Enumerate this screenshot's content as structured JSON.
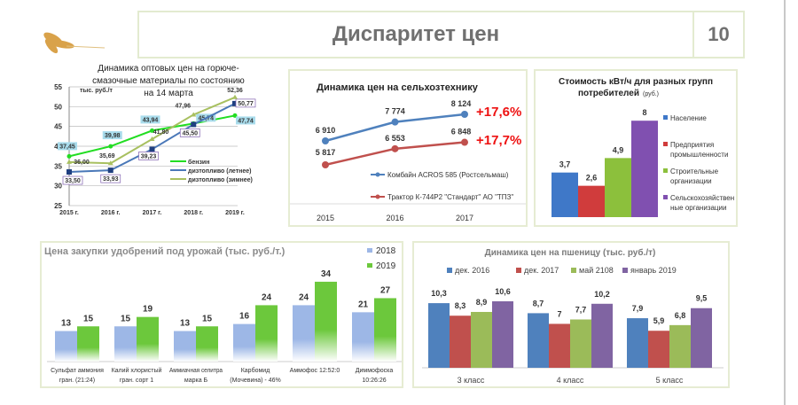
{
  "header": {
    "title": "Диспаритет цен",
    "page_number": "10",
    "logo": "wheat-ears"
  },
  "chart_data": [
    {
      "type": "line",
      "title": "Динамика оптовых цен на горюче-смазочные материалы по состоянию на 14 марта",
      "unit": "тыс. руб./т",
      "categories": [
        "2015 г.",
        "2016 г.",
        "2017 г.",
        "2018 г.",
        "2019 г."
      ],
      "yticks": [
        "25",
        "30",
        "35",
        "40",
        "45",
        "50",
        "55"
      ],
      "ylim": [
        25,
        55
      ],
      "series": [
        {
          "name": "бензин",
          "color": "#22dd22",
          "values": [
            37.45,
            39.98,
            43.94,
            45.74,
            47.74
          ],
          "labels": [
            "37,45",
            "39,98",
            "43,94",
            "45,74",
            "47,74"
          ]
        },
        {
          "name": "дизтопливо (летнее)",
          "color": "#4a78b8",
          "values": [
            33.5,
            33.93,
            39.23,
            45.5,
            50.77
          ],
          "labels": [
            "33,50",
            "33,93",
            "39,23",
            "45,50",
            "50,77"
          ]
        },
        {
          "name": "дизтопливо (зимнее)",
          "color": "#a8c060",
          "values": [
            36.0,
            35.69,
            41.8,
            47.96,
            52.36
          ],
          "labels": [
            "36,00",
            "35,69",
            "41,80",
            "47,96",
            "52,36"
          ]
        }
      ]
    },
    {
      "type": "line",
      "title": "Динамика цен на сельхозтехнику",
      "categories": [
        "2015",
        "2016",
        "2017"
      ],
      "series": [
        {
          "name": "Комбайн ACROS 585 (Ростсельмаш)",
          "color": "#4f81bd",
          "values": [
            6910,
            7774,
            8124
          ],
          "labels": [
            "6 910",
            "7 774",
            "8 124"
          ],
          "change": "+17,6%"
        },
        {
          "name": "Трактор К-744Р2 \"Стандарт\" АО \"ТПЗ\"",
          "color": "#c0504d",
          "values": [
            5817,
            6553,
            6848
          ],
          "labels": [
            "5 817",
            "6 553",
            "6 848"
          ],
          "change": "+17,7%"
        }
      ]
    },
    {
      "type": "bar",
      "title": "Стоимость кВт/ч для разных групп",
      "title2": "потребителей",
      "unit": "(руб.)",
      "categories": [
        "Население",
        "Предприятия промышленности",
        "Строительные организации",
        "Сельскохозяйственные организации"
      ],
      "legend_lines": [
        [
          "Население"
        ],
        [
          "Предприятия",
          "промышленности"
        ],
        [
          "Строительные",
          "организации"
        ],
        [
          "Сельскохозяйствен",
          "ные организации"
        ]
      ],
      "values": [
        3.7,
        2.6,
        4.9,
        8
      ],
      "labels": [
        "3,7",
        "2,6",
        "4,9",
        "8"
      ],
      "colors": [
        "#3f78c8",
        "#d03c3c",
        "#8cc03c",
        "#8050b0"
      ]
    },
    {
      "type": "bar",
      "title": "Цена закупки удобрений под урожай (тыс. руб./т.)",
      "categories": [
        [
          "Сульфат аммония",
          "гран. (21:24)"
        ],
        [
          "Калий хлористый",
          "гран. сорт 1"
        ],
        [
          "Аммиачная селитра",
          "марка Б"
        ],
        [
          "Карбомид",
          "(Мочевина) - 46%"
        ],
        [
          "Аммофос  12:52:0",
          ""
        ],
        [
          "Диммофоска",
          "10:26:26"
        ]
      ],
      "series": [
        {
          "name": "2018",
          "color": "#9db7e6",
          "values": [
            13,
            15,
            13,
            16,
            24,
            21
          ]
        },
        {
          "name": "2019",
          "color": "#6cc83c",
          "values": [
            15,
            19,
            15,
            24,
            34,
            27
          ]
        }
      ]
    },
    {
      "type": "bar",
      "title": "Динамика цен на пшеницу (тыс. руб./т)",
      "categories": [
        "3 класс",
        "4 класс",
        "5 класс"
      ],
      "series": [
        {
          "name": "дек. 2016",
          "color": "#4f81bd",
          "values": [
            10.3,
            8.7,
            7.9
          ],
          "labels": [
            "10,3",
            "8,7",
            "7,9"
          ]
        },
        {
          "name": "дек. 2017",
          "color": "#c0504d",
          "values": [
            8.3,
            7,
            5.9
          ],
          "labels": [
            "8,3",
            "7",
            "5,9"
          ]
        },
        {
          "name": "май 2108",
          "color": "#9bbb59",
          "values": [
            8.9,
            7.7,
            6.8
          ],
          "labels": [
            "8,9",
            "7,7",
            "6,8"
          ]
        },
        {
          "name": "январь 2019",
          "color": "#8064a2",
          "values": [
            10.6,
            10.2,
            9.5
          ],
          "labels": [
            "10,6",
            "10,2",
            "9,5"
          ]
        }
      ]
    }
  ]
}
